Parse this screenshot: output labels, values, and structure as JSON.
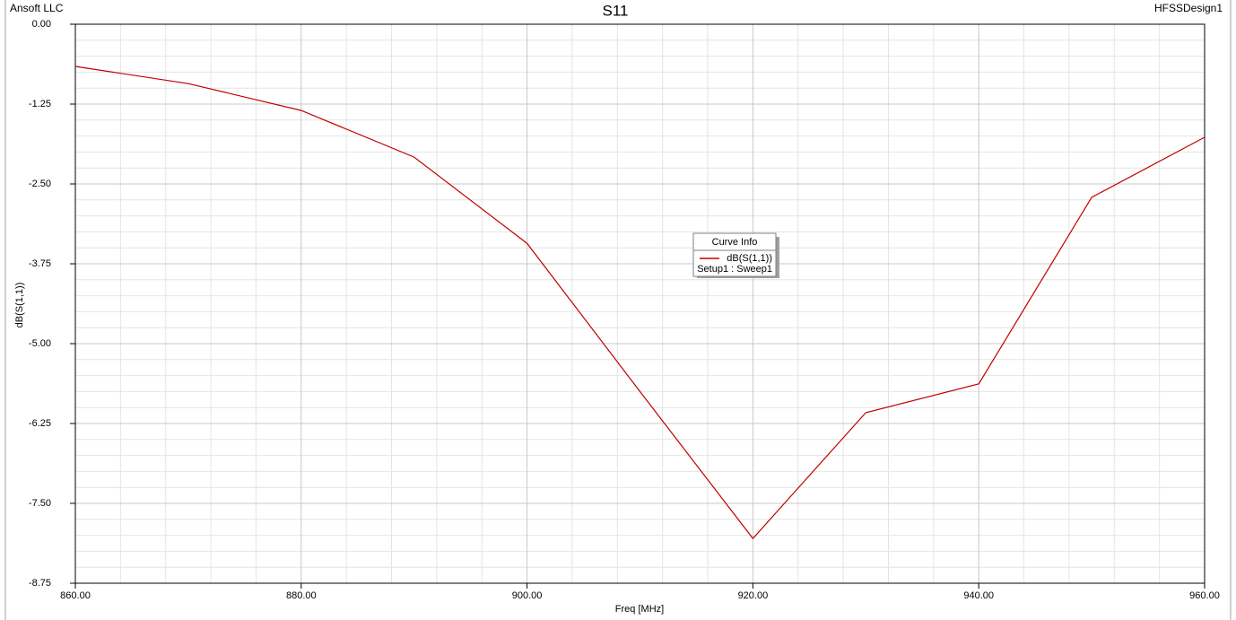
{
  "chart_data": {
    "type": "line",
    "title": "S11",
    "company": "Ansoft LLC",
    "design": "HFSSDesign1",
    "x_label": "Freq [MHz]",
    "y_label": "dB(S(1,1))",
    "legend_title": "Curve Info",
    "x": [
      860,
      870,
      880,
      890,
      900,
      910,
      920,
      930,
      940,
      950,
      960
    ],
    "series": [
      {
        "name": "dB(S(1,1))",
        "setup": "Setup1 : Sweep1",
        "color": "#c00000",
        "values": [
          -0.66,
          -0.93,
          -1.35,
          -2.08,
          -3.43,
          -5.75,
          -8.05,
          -6.08,
          -5.63,
          -2.71,
          -1.77
        ]
      }
    ],
    "xlim": [
      860,
      960
    ],
    "xticks": [
      {
        "value": 860,
        "label": "860.00"
      },
      {
        "value": 880,
        "label": "880.00"
      },
      {
        "value": 900,
        "label": "900.00"
      },
      {
        "value": 920,
        "label": "920.00"
      },
      {
        "value": 940,
        "label": "940.00"
      },
      {
        "value": 960,
        "label": "960.00"
      }
    ],
    "ylim": [
      -8.75,
      0
    ],
    "yticks": [
      {
        "value": 0,
        "label": "0.00"
      },
      {
        "value": -1.25,
        "label": "-1.25"
      },
      {
        "value": -2.5,
        "label": "-2.50"
      },
      {
        "value": -3.75,
        "label": "-3.75"
      },
      {
        "value": -5,
        "label": "-5.00"
      },
      {
        "value": -6.25,
        "label": "-6.25"
      },
      {
        "value": -7.5,
        "label": "-7.50"
      },
      {
        "value": -8.75,
        "label": "-8.75"
      }
    ],
    "grid": true,
    "minor_grid": true
  }
}
